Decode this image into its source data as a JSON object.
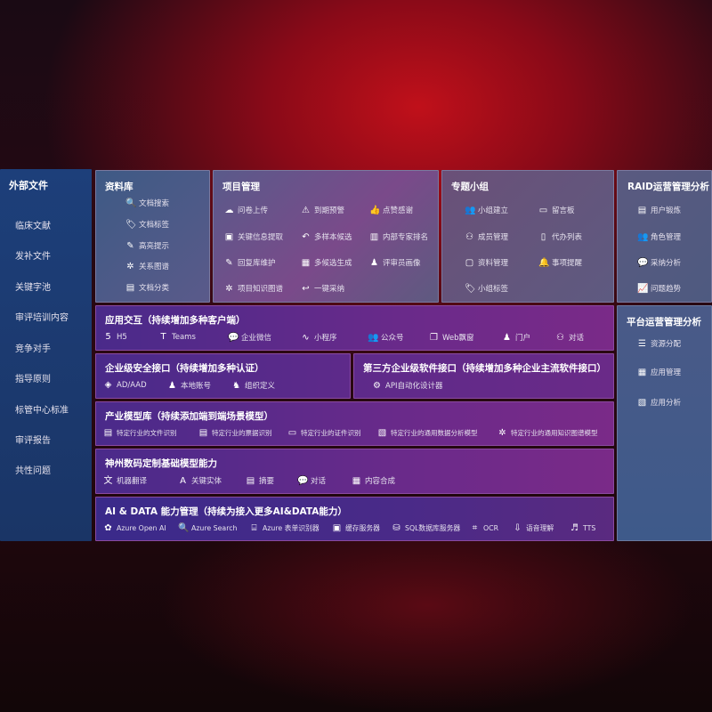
{
  "sidebar": {
    "title": "外部文件",
    "items": [
      "临床文献",
      "发补文件",
      "关键字池",
      "审评培训内容",
      "竞争对手",
      "指导原则",
      "标管中心标准",
      "审评报告",
      "共性问题"
    ]
  },
  "library": {
    "title": "资料库",
    "items": [
      "文档搜索",
      "文档标签",
      "高亮提示",
      "关系图谱",
      "文档分类"
    ]
  },
  "project": {
    "title": "项目管理",
    "items": [
      "问卷上传",
      "到期预警",
      "点赞感谢",
      "关键信息提取",
      "多样本候选",
      "内部专家排名",
      "回复库维护",
      "多候选生成",
      "评审员画像",
      "项目知识图谱",
      "一键采纳"
    ]
  },
  "group": {
    "title": "专题小组",
    "items": [
      "小组建立",
      "留言板",
      "成员管理",
      "代办列表",
      "资料管理",
      "事项提醒",
      "小组标签"
    ]
  },
  "raid": {
    "title": "RAID运营管理分析",
    "items": [
      "用户锻炼",
      "角色管理",
      "采纳分析",
      "问题趋势"
    ]
  },
  "platform": {
    "title": "平台运营管理分析",
    "items": [
      "资源分配",
      "应用管理",
      "应用分析"
    ]
  },
  "app": {
    "title": "应用交互（持续增加多种客户端）",
    "items": [
      "H5",
      "Teams",
      "企业微信",
      "小程序",
      "公众号",
      "Web飘窗",
      "门户",
      "对话"
    ]
  },
  "security": {
    "title": "企业级安全接口（持续增加多种认证）",
    "items": [
      "AD/AAD",
      "本地账号",
      "组织定义"
    ]
  },
  "third": {
    "title": "第三方企业级软件接口（持续增加多种企业主流软件接口）",
    "items": [
      "API自动化设计器"
    ]
  },
  "industry": {
    "title": "产业模型库（持续添加端到端场景模型）",
    "items": [
      "特定行业的文件识别",
      "特定行业的票据识别",
      "特定行业的证件识别",
      "特定行业的通用数据分析模型",
      "特定行业的通用知识图谱模型"
    ]
  },
  "base": {
    "title": "神州数码定制基础模型能力",
    "items": [
      "机器翻译",
      "关键实体",
      "摘要",
      "对话",
      "内容合成"
    ]
  },
  "ai": {
    "title": "AI & DATA 能力管理（持续为接入更多AI&DATA能力）",
    "items": [
      "Azure Open AI",
      "Azure Search",
      "Azure 表单识别器",
      "缓存服务器",
      "SQL数据库服务器",
      "OCR",
      "语音理解",
      "TTS"
    ]
  }
}
